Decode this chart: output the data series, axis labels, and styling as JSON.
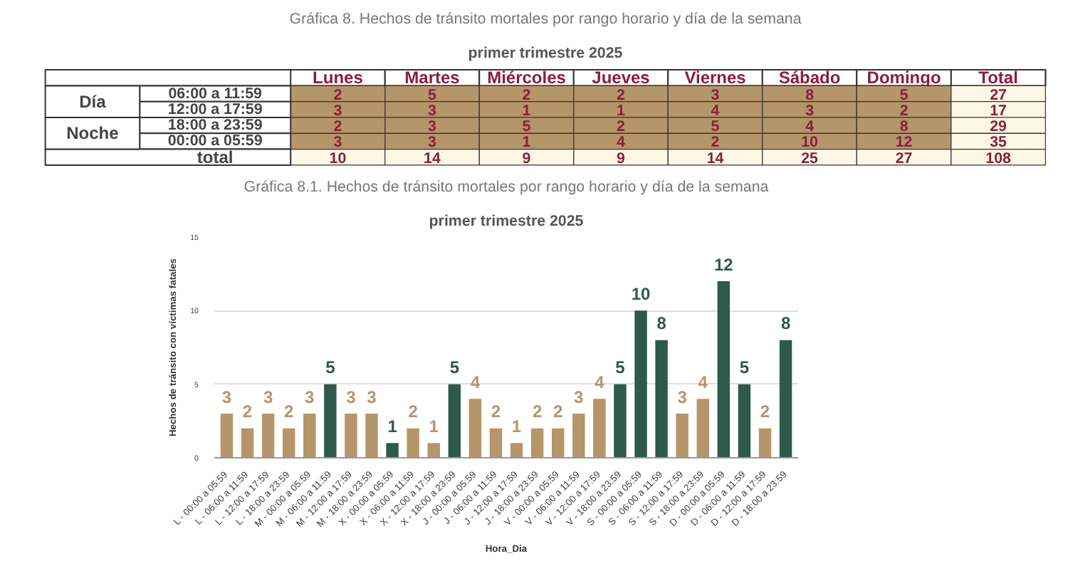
{
  "chart_data": [
    {
      "type": "heatmap",
      "title": "Gráfica 8. Hechos de tránsito mortales por rango horario y día de la semana",
      "subtitle": "primer trimestre 2025",
      "categories": [
        "Lunes",
        "Martes",
        "Miércoles",
        "Jueves",
        "Viernes",
        "Sábado",
        "Domingo",
        "Total"
      ],
      "y_categories": [
        "06:00 a 11:59",
        "12:00 a 17:59",
        "18:00 a 23:59",
        "00:00 a 05:59",
        "total"
      ],
      "y2_categories": [
        "Día",
        null,
        "Noche",
        null,
        null
      ],
      "cells": [
        [
          2,
          5,
          2,
          2,
          3,
          8,
          5,
          27
        ],
        [
          3,
          3,
          1,
          1,
          4,
          3,
          2,
          17
        ],
        [
          2,
          3,
          5,
          2,
          5,
          4,
          8,
          29
        ],
        [
          3,
          3,
          1,
          4,
          2,
          10,
          12,
          35
        ],
        [
          10,
          14,
          9,
          9,
          14,
          25,
          27,
          108
        ]
      ],
      "colors": [
        [
          "#b5956a",
          "#b5956a",
          "#b5956a",
          "#b5956a",
          "#b5956a",
          "#b5956a",
          "#b5956a",
          "#fdf8e6"
        ],
        [
          "#b5956a",
          "#b5956a",
          "#b5956a",
          "#b5956a",
          "#b5956a",
          "#b5956a",
          "#b5956a",
          "#fdf8e6"
        ],
        [
          "#b5956a",
          "#b5956a",
          "#b5956a",
          "#b5956a",
          "#b5956a",
          "#b5956a",
          "#b5956a",
          "#fdf8e6"
        ],
        [
          "#b5956a",
          "#b5956a",
          "#b5956a",
          "#b5956a",
          "#b5956a",
          "#b5956a",
          "#b5956a",
          "#fdf8e6"
        ],
        [
          "#fdf8e6",
          "#fdf8e6",
          "#fdf8e6",
          "#fdf8e6",
          "#fdf8e6",
          "#fdf8e6",
          "#fdf8e6",
          "#fdf8e6"
        ]
      ],
      "data_labels": true
    },
    {
      "type": "bar",
      "title": "Gráfica 8.1. Hechos de tránsito mortales por rango horario y día de la semana",
      "subtitle": "primer trimestre 2025",
      "xlabel": "Hora_Dia",
      "ylabel": "Hechos de tránsito con víctimas fatales",
      "categories": [
        "L - 00:00 a 05:59",
        "L - 06:00 a 11:59",
        "L - 12:00 a 17:59",
        "L - 18:00 a 23:59",
        "M - 00:00 a 05:59",
        "M - 06:00 a 11:59",
        "M - 12:00 a 17:59",
        "M - 18:00 a 23:59",
        "X - 00:00 a 05:59",
        "X - 06:00 a 11:59",
        "X - 12:00 a 17:59",
        "X - 18:00 a 23:59",
        "J - 00:00 a 05:59",
        "J - 06:00 a 11:59",
        "J - 12:00 a 17:59",
        "J - 18:00 a 23:59",
        "V - 00:00 a 05:59",
        "V - 06:00 a 11:59",
        "V - 12:00 a 17:59",
        "V - 18:00 a 23:59",
        "S - 00:00 a 05:59",
        "S - 06:00 a 11:59",
        "S - 12:00 a 17:59",
        "S - 18:00 a 23:59",
        "D - 00:00 a 05:59",
        "D - 06:00 a 11:59",
        "D - 12:00 a 17:59",
        "D - 18:00 a 23:59"
      ],
      "values": [
        3,
        2,
        3,
        2,
        3,
        5,
        3,
        3,
        1,
        2,
        1,
        5,
        4,
        2,
        1,
        2,
        2,
        3,
        4,
        5,
        10,
        8,
        3,
        4,
        12,
        5,
        2,
        8
      ],
      "colors": [
        "#b5956a",
        "#b5956a",
        "#b5956a",
        "#b5956a",
        "#b5956a",
        "#2e5a4b",
        "#b5956a",
        "#b5956a",
        "#2e5a4b",
        "#b5956a",
        "#b5956a",
        "#2e5a4b",
        "#b5956a",
        "#b5956a",
        "#b5956a",
        "#b5956a",
        "#b5956a",
        "#b5956a",
        "#b5956a",
        "#2e5a4b",
        "#2e5a4b",
        "#2e5a4b",
        "#b5956a",
        "#b5956a",
        "#2e5a4b",
        "#2e5a4b",
        "#b5956a",
        "#2e5a4b"
      ],
      "ylim": [
        0,
        15
      ],
      "yticks": [
        0,
        5,
        10,
        15
      ],
      "grid": "y",
      "data_labels": true
    }
  ]
}
